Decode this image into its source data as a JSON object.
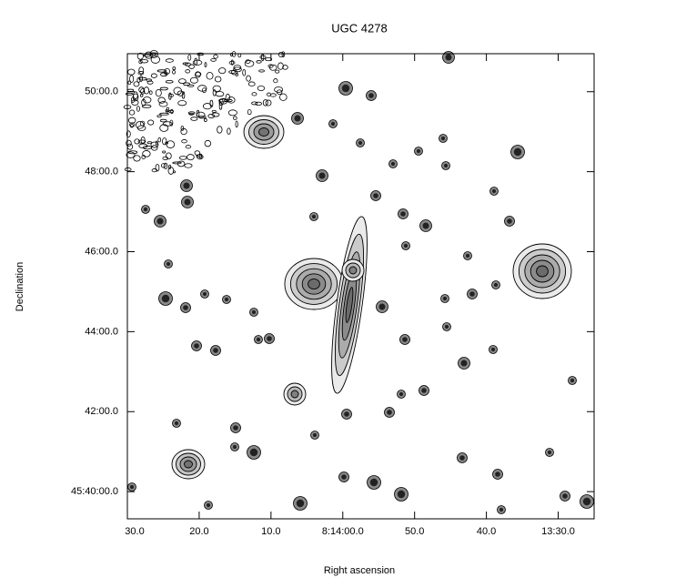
{
  "chart_data": {
    "type": "image",
    "title": "UGC 4278",
    "x_label": "Right ascension",
    "y_label": "Declination",
    "xlim": [
      90,
      25
    ],
    "ylim": [
      39.32,
      50.95
    ],
    "xticks": [
      {
        "value": 90,
        "label": "30.0"
      },
      {
        "value": 80,
        "label": "20.0"
      },
      {
        "value": 70,
        "label": "10.0"
      },
      {
        "value": 60,
        "label": "8:14:00.0"
      },
      {
        "value": 50,
        "label": "50.0"
      },
      {
        "value": 40,
        "label": "40.0"
      },
      {
        "value": 30,
        "label": "13:30.0"
      }
    ],
    "yticks": [
      {
        "value": 50,
        "label": "50:00.0"
      },
      {
        "value": 48,
        "label": "48:00.0"
      },
      {
        "value": 46,
        "label": "46:00.0"
      },
      {
        "value": 44,
        "label": "44:00.0"
      },
      {
        "value": 42,
        "label": "42:00.0"
      },
      {
        "value": 40,
        "label": "45:40:00.0"
      }
    ]
  }
}
